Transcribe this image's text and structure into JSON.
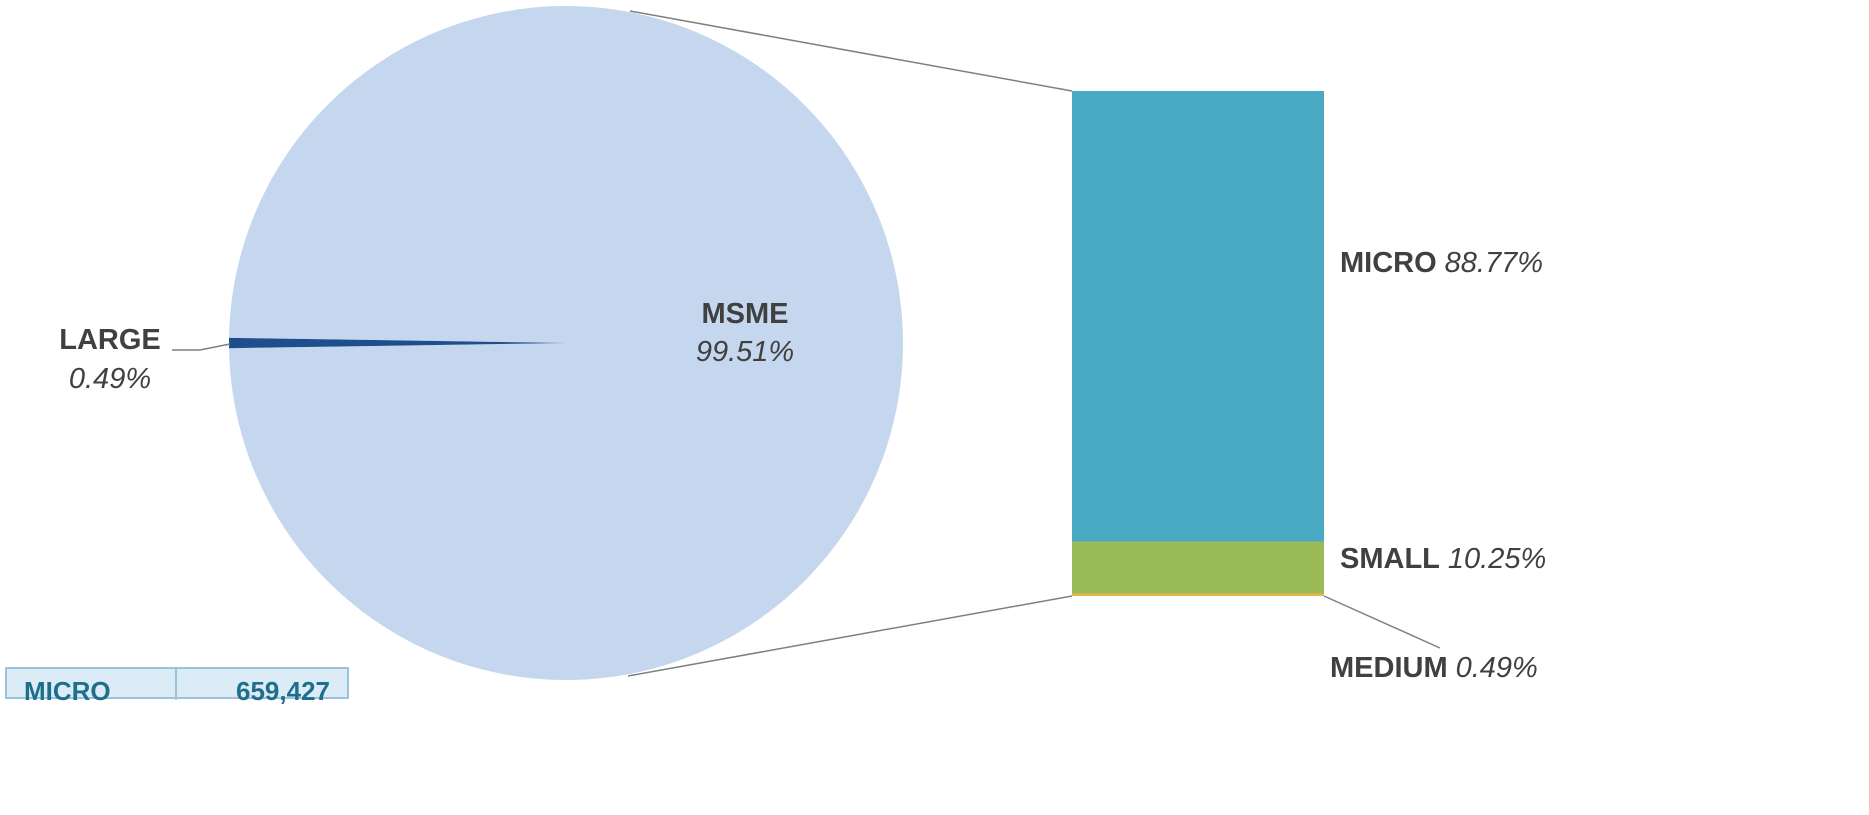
{
  "chart_data": {
    "type": "pie",
    "subtype": "bar-of-pie",
    "pie": {
      "slices": [
        {
          "label": "MSME",
          "value": 99.51,
          "value_text": "99.51%",
          "color": "#c5d7ee"
        },
        {
          "label": "LARGE",
          "value": 0.49,
          "value_text": "0.49%",
          "color": "#1f4e8c"
        }
      ]
    },
    "bar": {
      "source_slice": "MSME",
      "segments": [
        {
          "label": "MICRO",
          "value": 88.77,
          "value_text": "88.77%",
          "color": "#4aaac4"
        },
        {
          "label": "SMALL",
          "value": 10.25,
          "value_text": "10.25%",
          "color": "#9bbb59"
        },
        {
          "label": "MEDIUM",
          "value": 0.49,
          "value_text": "0.49%",
          "color": "#e6b84a"
        }
      ]
    },
    "legend": "none",
    "grid": false
  },
  "partial_table": {
    "row_label": "MICRO",
    "row_value": "659,427",
    "header_color": "#dcecf7",
    "border_color": "#9cc3db"
  }
}
